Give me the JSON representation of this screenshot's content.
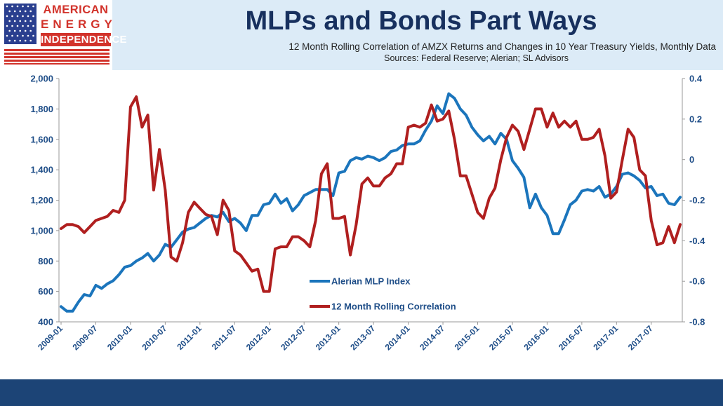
{
  "header": {
    "logo": {
      "line1": "AMERICAN",
      "line2": "ENERGY",
      "line3": "INDEPENDENCE"
    },
    "title": "MLPs and Bonds Part Ways",
    "subtitle": "12 Month Rolling Correlation of AMZX Returns and Changes in 10 Year Treasury Yields, Monthly Data",
    "sources": "Sources: Federal Reserve; Alerian; SL Advisors"
  },
  "colors": {
    "mlp": "#1b75bc",
    "correlation": "#b01f1f",
    "axis_text": "#1f4e88",
    "title": "#17305e",
    "header_band": "#dcebf7",
    "footer_band": "#1c4476"
  },
  "chart_data": {
    "type": "line",
    "x_labels": [
      "2009-01",
      "2009-07",
      "2010-01",
      "2010-07",
      "2011-01",
      "2011-07",
      "2012-01",
      "2012-07",
      "2013-01",
      "2013-07",
      "2014-01",
      "2014-07",
      "2015-01",
      "2015-07",
      "2016-01",
      "2016-07",
      "2017-01",
      "2017-07"
    ],
    "x_start": "2009-01",
    "x_end": "2017-12",
    "y_left": {
      "min": 400,
      "max": 2000,
      "ticks": [
        "400",
        "600",
        "800",
        "1,000",
        "1,200",
        "1,400",
        "1,600",
        "1,800",
        "2,000"
      ]
    },
    "y_right": {
      "min": -0.8,
      "max": 0.4,
      "ticks": [
        "-0.8",
        "-0.6",
        "-0.4",
        "-0.2",
        "0",
        "0.2",
        "0.4"
      ]
    },
    "grid": false,
    "legend_position": "bottom-center",
    "series": [
      {
        "name": "Alerian MLP Index",
        "axis": "left",
        "values": [
          500,
          470,
          470,
          530,
          580,
          570,
          640,
          620,
          650,
          670,
          710,
          760,
          770,
          800,
          820,
          850,
          800,
          840,
          910,
          890,
          940,
          990,
          1010,
          1020,
          1050,
          1080,
          1100,
          1090,
          1120,
          1060,
          1080,
          1050,
          1000,
          1100,
          1100,
          1170,
          1180,
          1240,
          1180,
          1210,
          1130,
          1170,
          1230,
          1250,
          1270,
          1270,
          1270,
          1230,
          1380,
          1390,
          1460,
          1480,
          1470,
          1490,
          1480,
          1460,
          1480,
          1520,
          1530,
          1560,
          1570,
          1570,
          1590,
          1660,
          1720,
          1820,
          1770,
          1900,
          1870,
          1800,
          1760,
          1680,
          1630,
          1590,
          1620,
          1570,
          1640,
          1600,
          1460,
          1410,
          1350,
          1150,
          1240,
          1150,
          1100,
          980,
          980,
          1070,
          1170,
          1200,
          1260,
          1270,
          1260,
          1290,
          1220,
          1240,
          1290,
          1370,
          1380,
          1360,
          1330,
          1280,
          1290,
          1230,
          1240,
          1180,
          1170,
          1220
        ]
      },
      {
        "name": "12 Month Rolling Correlation",
        "axis": "right",
        "values": [
          -0.34,
          -0.32,
          -0.32,
          -0.33,
          -0.36,
          -0.33,
          -0.3,
          -0.29,
          -0.28,
          -0.25,
          -0.26,
          -0.2,
          0.26,
          0.31,
          0.16,
          0.22,
          -0.15,
          0.05,
          -0.15,
          -0.48,
          -0.5,
          -0.41,
          -0.26,
          -0.21,
          -0.24,
          -0.27,
          -0.28,
          -0.37,
          -0.2,
          -0.25,
          -0.45,
          -0.47,
          -0.51,
          -0.55,
          -0.54,
          -0.65,
          -0.65,
          -0.44,
          -0.43,
          -0.43,
          -0.38,
          -0.38,
          -0.4,
          -0.43,
          -0.3,
          -0.07,
          -0.02,
          -0.29,
          -0.29,
          -0.28,
          -0.47,
          -0.32,
          -0.12,
          -0.09,
          -0.13,
          -0.13,
          -0.09,
          -0.07,
          -0.02,
          -0.02,
          0.16,
          0.17,
          0.16,
          0.18,
          0.27,
          0.19,
          0.2,
          0.24,
          0.1,
          -0.08,
          -0.08,
          -0.17,
          -0.26,
          -0.29,
          -0.19,
          -0.14,
          0.0,
          0.11,
          0.17,
          0.14,
          0.05,
          0.15,
          0.25,
          0.25,
          0.16,
          0.23,
          0.16,
          0.19,
          0.16,
          0.19,
          0.1,
          0.1,
          0.11,
          0.15,
          0.02,
          -0.19,
          -0.16,
          0.0,
          0.15,
          0.11,
          -0.05,
          -0.08,
          -0.3,
          -0.42,
          -0.41,
          -0.33,
          -0.41,
          -0.32
        ]
      }
    ]
  }
}
